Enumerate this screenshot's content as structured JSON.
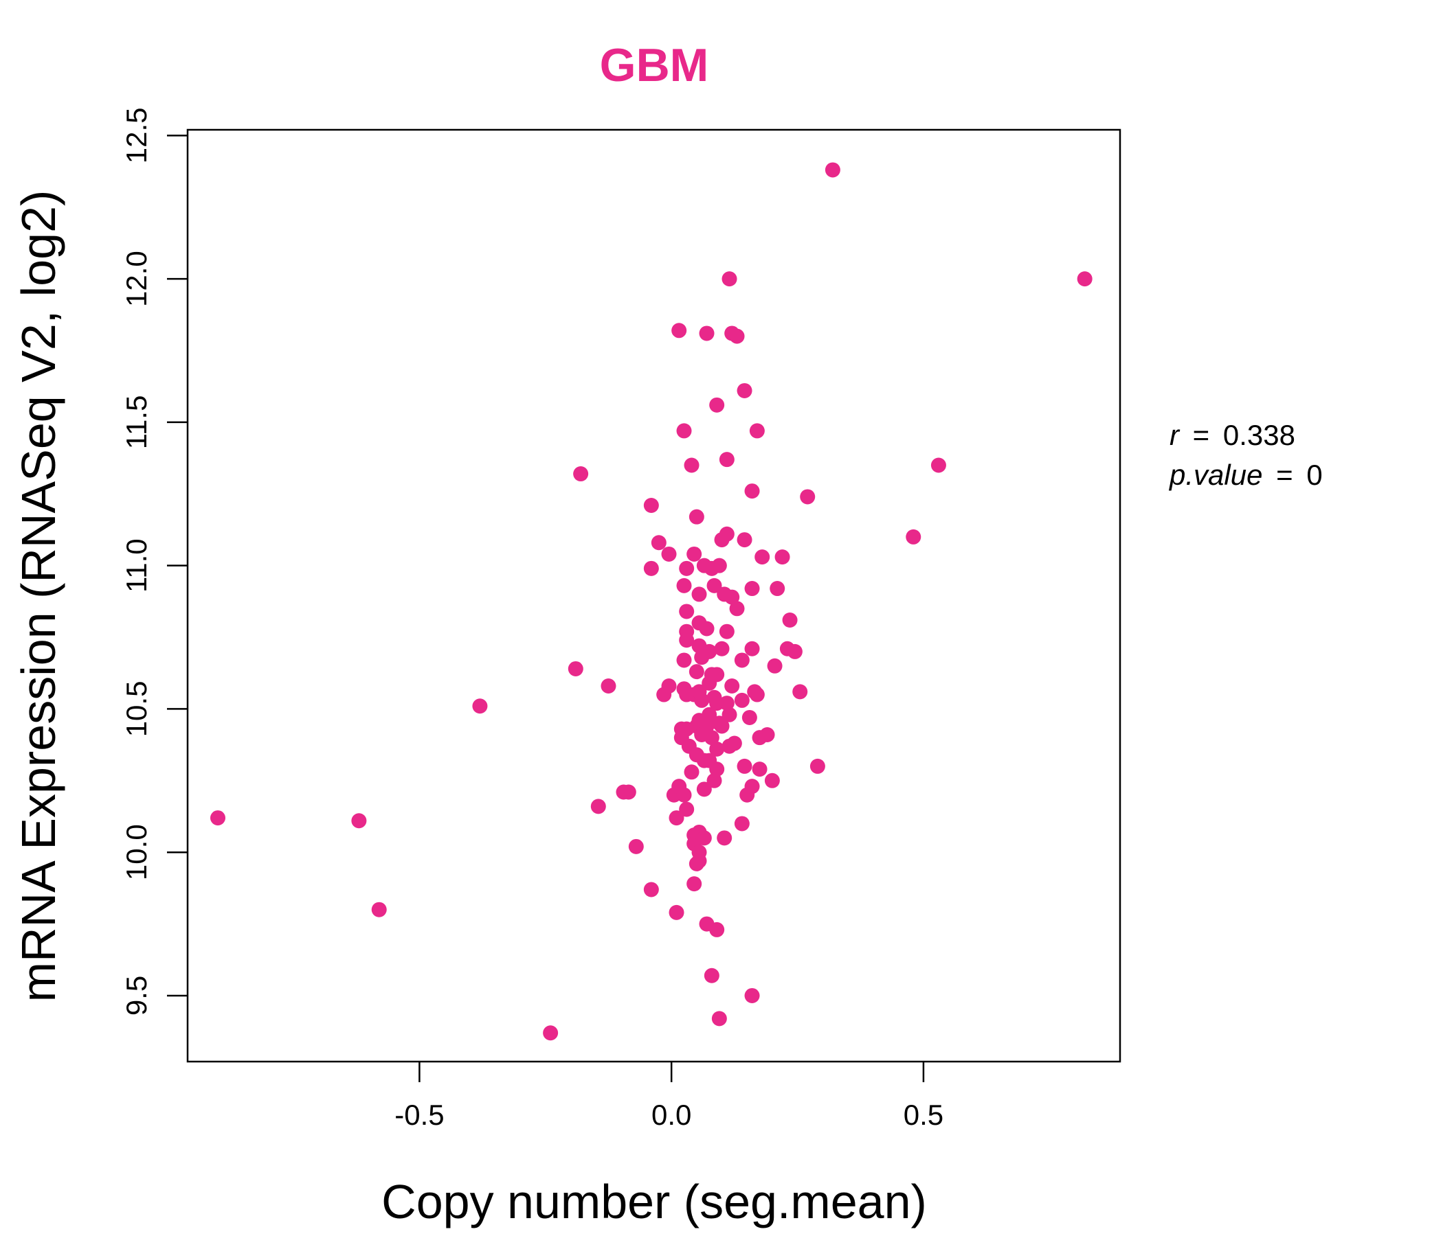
{
  "colors": {
    "accent": "#E8288A",
    "axis": "#000000",
    "background": "#ffffff"
  },
  "chart_data": {
    "type": "scatter",
    "title": "GBM",
    "xlabel": "Copy number (seg.mean)",
    "ylabel": "mRNA Expression (RNASeq V2, log2)",
    "xlim": [
      -0.96,
      0.89
    ],
    "ylim": [
      9.27,
      12.52
    ],
    "x_ticks": [
      -0.5,
      0.0,
      0.5
    ],
    "x_tick_labels": [
      "-0.5",
      "0.0",
      "0.5"
    ],
    "y_ticks": [
      9.5,
      10.0,
      10.5,
      11.0,
      11.5,
      12.0,
      12.5
    ],
    "y_tick_labels": [
      "9.5",
      "10.0",
      "10.5",
      "11.0",
      "11.5",
      "12.0",
      "12.5"
    ],
    "grid": false,
    "legend": "none",
    "annotations": [
      {
        "name": "correlation-annotation",
        "label": "r",
        "eq": "=",
        "value": "0.338"
      },
      {
        "name": "pvalue-annotation",
        "label": "p.value",
        "eq": "=",
        "value": "0"
      }
    ],
    "points": [
      [
        -0.9,
        10.12
      ],
      [
        -0.62,
        10.11
      ],
      [
        -0.58,
        9.8
      ],
      [
        -0.38,
        10.51
      ],
      [
        -0.24,
        9.37
      ],
      [
        -0.19,
        10.64
      ],
      [
        -0.18,
        11.32
      ],
      [
        -0.145,
        10.16
      ],
      [
        -0.125,
        10.58
      ],
      [
        -0.095,
        10.21
      ],
      [
        -0.085,
        10.21
      ],
      [
        -0.07,
        10.02
      ],
      [
        -0.04,
        11.21
      ],
      [
        -0.04,
        10.99
      ],
      [
        -0.04,
        9.87
      ],
      [
        -0.025,
        11.08
      ],
      [
        -0.015,
        10.55
      ],
      [
        -0.005,
        11.04
      ],
      [
        -0.005,
        10.58
      ],
      [
        0.005,
        10.2
      ],
      [
        0.01,
        10.12
      ],
      [
        0.01,
        9.79
      ],
      [
        0.015,
        11.82
      ],
      [
        0.015,
        10.23
      ],
      [
        0.02,
        10.4
      ],
      [
        0.02,
        10.43
      ],
      [
        0.025,
        11.47
      ],
      [
        0.025,
        10.93
      ],
      [
        0.025,
        10.67
      ],
      [
        0.025,
        10.57
      ],
      [
        0.025,
        10.2
      ],
      [
        0.03,
        10.99
      ],
      [
        0.03,
        10.84
      ],
      [
        0.03,
        10.77
      ],
      [
        0.03,
        10.74
      ],
      [
        0.03,
        10.55
      ],
      [
        0.03,
        10.43
      ],
      [
        0.03,
        10.15
      ],
      [
        0.035,
        10.37
      ],
      [
        0.04,
        10.28
      ],
      [
        0.04,
        11.35
      ],
      [
        0.045,
        11.04
      ],
      [
        0.045,
        10.55
      ],
      [
        0.045,
        10.06
      ],
      [
        0.045,
        10.03
      ],
      [
        0.045,
        9.89
      ],
      [
        0.05,
        11.17
      ],
      [
        0.05,
        10.63
      ],
      [
        0.05,
        10.44
      ],
      [
        0.05,
        10.34
      ],
      [
        0.05,
        9.96
      ],
      [
        0.055,
        10.9
      ],
      [
        0.055,
        10.8
      ],
      [
        0.055,
        10.72
      ],
      [
        0.055,
        10.56
      ],
      [
        0.055,
        10.46
      ],
      [
        0.055,
        10.07
      ],
      [
        0.055,
        10.0
      ],
      [
        0.055,
        9.97
      ],
      [
        0.06,
        10.68
      ],
      [
        0.06,
        10.53
      ],
      [
        0.06,
        10.41
      ],
      [
        0.065,
        11.0
      ],
      [
        0.065,
        10.32
      ],
      [
        0.065,
        10.22
      ],
      [
        0.065,
        10.05
      ],
      [
        0.07,
        11.81
      ],
      [
        0.07,
        10.78
      ],
      [
        0.07,
        10.44
      ],
      [
        0.07,
        9.75
      ],
      [
        0.075,
        10.7
      ],
      [
        0.075,
        10.59
      ],
      [
        0.075,
        10.48
      ],
      [
        0.075,
        10.32
      ],
      [
        0.08,
        10.99
      ],
      [
        0.08,
        10.62
      ],
      [
        0.08,
        10.4
      ],
      [
        0.08,
        9.57
      ],
      [
        0.085,
        10.93
      ],
      [
        0.085,
        10.54
      ],
      [
        0.085,
        10.25
      ],
      [
        0.09,
        11.56
      ],
      [
        0.09,
        10.62
      ],
      [
        0.09,
        10.52
      ],
      [
        0.09,
        10.36
      ],
      [
        0.09,
        10.29
      ],
      [
        0.09,
        9.73
      ],
      [
        0.095,
        11.0
      ],
      [
        0.095,
        10.45
      ],
      [
        0.095,
        9.42
      ],
      [
        0.1,
        11.09
      ],
      [
        0.1,
        10.71
      ],
      [
        0.1,
        10.44
      ],
      [
        0.105,
        10.9
      ],
      [
        0.105,
        10.05
      ],
      [
        0.11,
        11.37
      ],
      [
        0.11,
        11.11
      ],
      [
        0.11,
        10.77
      ],
      [
        0.11,
        10.52
      ],
      [
        0.115,
        12.0
      ],
      [
        0.115,
        10.37
      ],
      [
        0.115,
        10.48
      ],
      [
        0.12,
        11.81
      ],
      [
        0.12,
        10.89
      ],
      [
        0.12,
        10.58
      ],
      [
        0.125,
        10.38
      ],
      [
        0.13,
        11.8
      ],
      [
        0.13,
        10.85
      ],
      [
        0.14,
        10.67
      ],
      [
        0.14,
        10.53
      ],
      [
        0.14,
        10.1
      ],
      [
        0.145,
        11.61
      ],
      [
        0.145,
        11.09
      ],
      [
        0.145,
        10.3
      ],
      [
        0.15,
        10.2
      ],
      [
        0.155,
        10.47
      ],
      [
        0.16,
        11.26
      ],
      [
        0.16,
        10.92
      ],
      [
        0.16,
        10.71
      ],
      [
        0.16,
        10.23
      ],
      [
        0.16,
        9.5
      ],
      [
        0.165,
        10.56
      ],
      [
        0.17,
        11.47
      ],
      [
        0.17,
        10.55
      ],
      [
        0.175,
        10.4
      ],
      [
        0.175,
        10.29
      ],
      [
        0.18,
        11.03
      ],
      [
        0.19,
        10.41
      ],
      [
        0.2,
        10.25
      ],
      [
        0.205,
        10.65
      ],
      [
        0.21,
        10.92
      ],
      [
        0.22,
        11.03
      ],
      [
        0.23,
        10.71
      ],
      [
        0.235,
        10.81
      ],
      [
        0.245,
        10.7
      ],
      [
        0.255,
        10.56
      ],
      [
        0.27,
        11.24
      ],
      [
        0.29,
        10.3
      ],
      [
        0.32,
        12.38
      ],
      [
        0.48,
        11.1
      ],
      [
        0.53,
        11.35
      ],
      [
        0.82,
        12.0
      ]
    ]
  }
}
